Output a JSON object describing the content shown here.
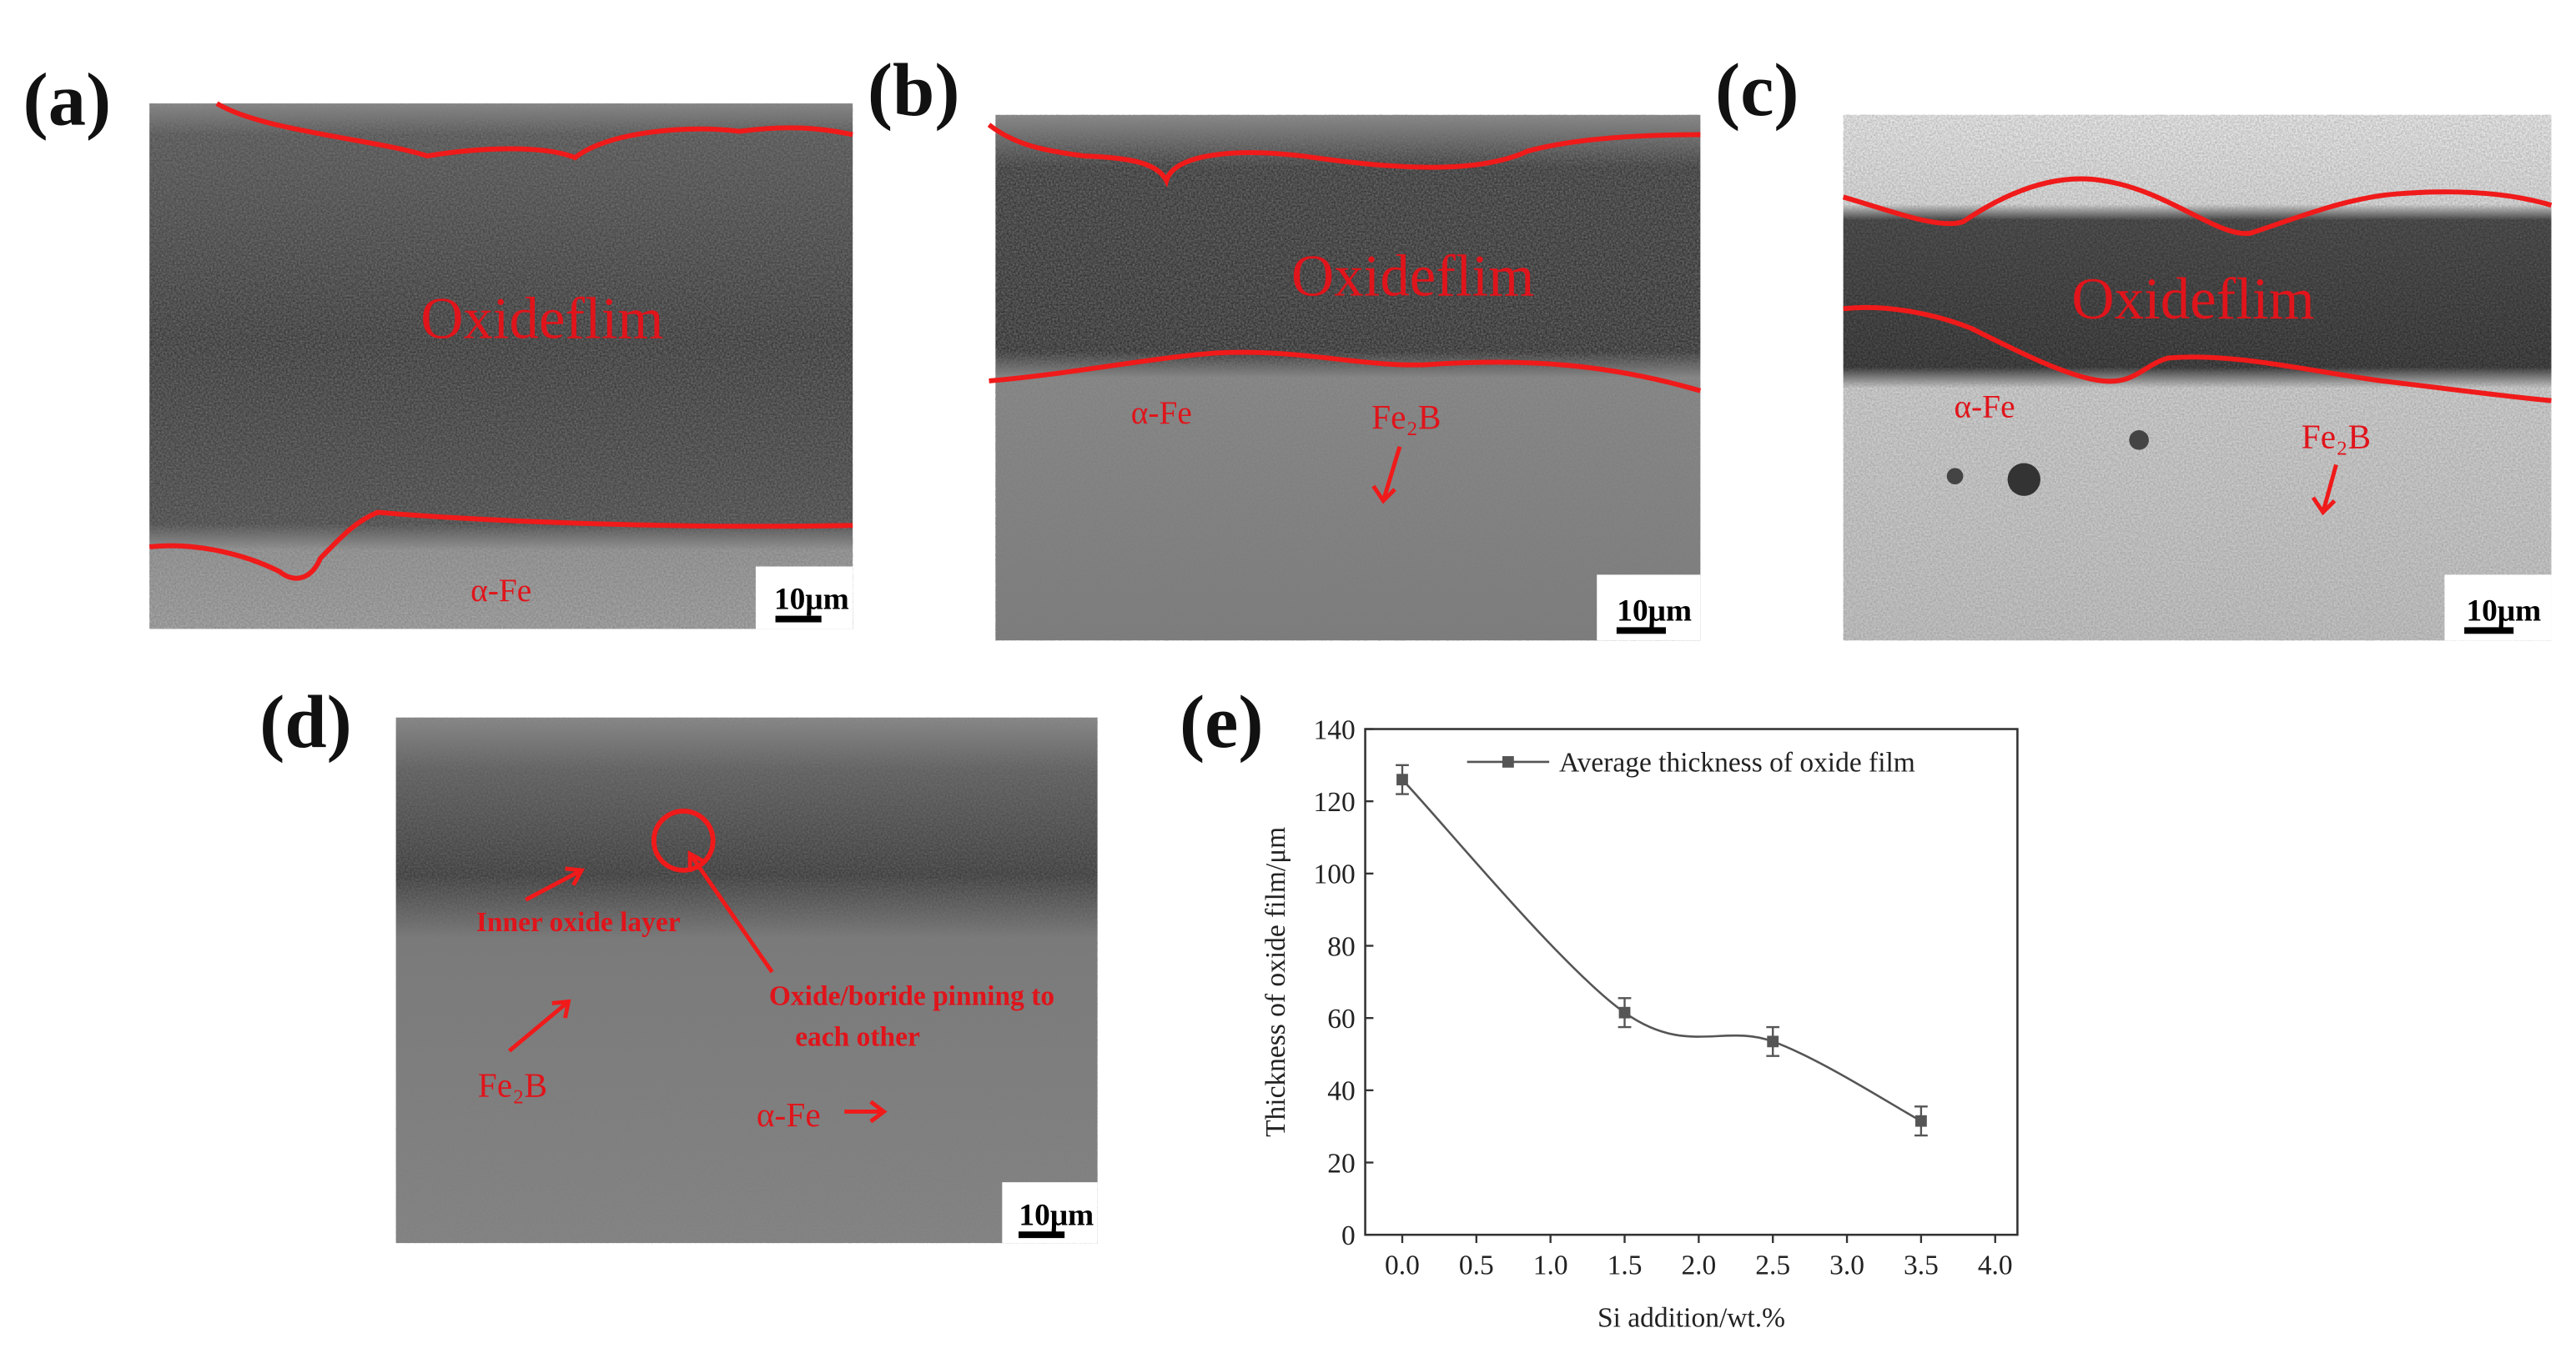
{
  "panels": [
    {
      "label": "(a)",
      "texts": [
        "Oxideflim",
        "α-Fe"
      ],
      "scale": "10μm"
    },
    {
      "label": "(b)",
      "texts": [
        "Oxideflim",
        "α-Fe",
        "Fe₂B"
      ],
      "scale": "10μm"
    },
    {
      "label": "(c)",
      "texts": [
        "Oxideflim",
        "α-Fe",
        "Fe₂B"
      ],
      "scale": "10μm"
    },
    {
      "label": "(d)",
      "texts": [
        "Inner oxide layer",
        "Oxide/boride pinning to",
        "each other",
        "Fe₂B",
        "α-Fe"
      ],
      "scale": "10μm"
    }
  ],
  "chart_data": {
    "type": "line",
    "panel_label": "(e)",
    "x_label": "Si addition/wt.%",
    "y_label": "Thickness of oxide film/μm",
    "x": [
      0,
      1.5,
      2.5,
      3.5
    ],
    "series": [
      {
        "name": "Average thickness of oxide film",
        "color": "#555555",
        "values": [
          126,
          61.5,
          53.5,
          31.5
        ],
        "errors": [
          4,
          4,
          4,
          4
        ]
      }
    ],
    "xlim": [
      -0.25,
      4.15
    ],
    "ylim": [
      0,
      140
    ],
    "xticks": [
      {
        "value": 0,
        "label": "0.0"
      },
      0.5,
      {
        "value": 1,
        "label": "1.0"
      },
      1.5,
      {
        "value": 2,
        "label": "2.0"
      },
      2.5,
      {
        "value": 3,
        "label": "3.0"
      },
      3.5,
      {
        "value": 4,
        "label": "4.0"
      }
    ],
    "yticks": [
      0,
      20,
      40,
      60,
      80,
      100,
      120,
      140
    ],
    "legend": "upper right",
    "grid": false
  }
}
